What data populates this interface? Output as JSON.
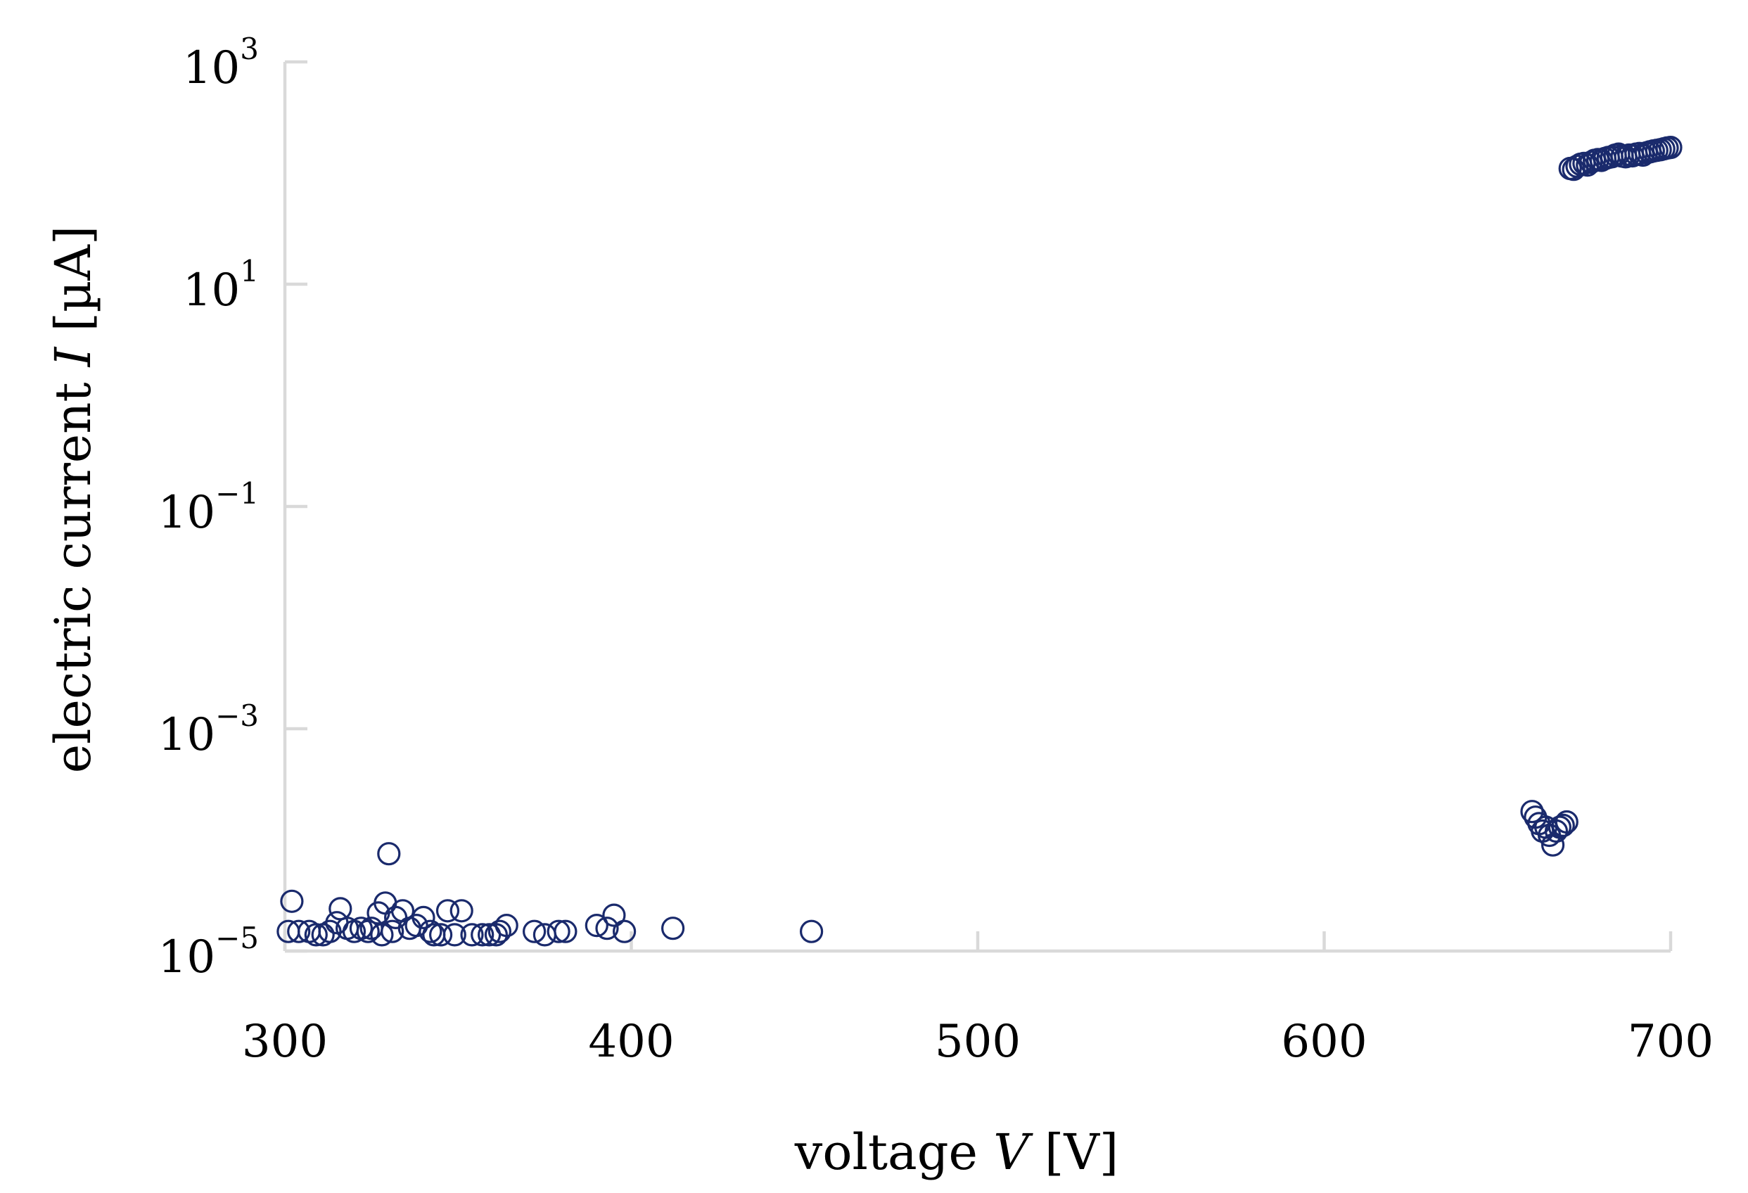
{
  "chart_data": {
    "type": "scatter",
    "xlabel": {
      "prefix": "voltage ",
      "var": "V",
      "suffix": " [V]"
    },
    "ylabel": {
      "prefix": "electric current ",
      "var": "I",
      "suffix": " [µA]"
    },
    "xlim": [
      300,
      700
    ],
    "ylim_log10": [
      -5,
      3
    ],
    "y_scale": "log",
    "x_ticks": [
      {
        "value": 300,
        "label": "300"
      },
      {
        "value": 400,
        "label": "400"
      },
      {
        "value": 500,
        "label": "500"
      },
      {
        "value": 600,
        "label": "600"
      },
      {
        "value": 700,
        "label": "700"
      }
    ],
    "y_ticks": [
      {
        "exp": -5,
        "base": "10",
        "power": "−5"
      },
      {
        "exp": -3,
        "base": "10",
        "power": "−3"
      },
      {
        "exp": -1,
        "base": "10",
        "power": "−1"
      },
      {
        "exp": 1,
        "base": "10",
        "power": "1"
      },
      {
        "exp": 3,
        "base": "10",
        "power": "3"
      }
    ],
    "grid": false,
    "marker": "open-circle",
    "color": "#1a2a6c",
    "points": [
      [
        302,
        2.8e-05
      ],
      [
        301,
        1.5e-05
      ],
      [
        304,
        1.5e-05
      ],
      [
        307,
        1.5e-05
      ],
      [
        309,
        1.4e-05
      ],
      [
        311,
        1.4e-05
      ],
      [
        313,
        1.5e-05
      ],
      [
        315,
        1.8e-05
      ],
      [
        316,
        2.4e-05
      ],
      [
        318,
        1.6e-05
      ],
      [
        320,
        1.5e-05
      ],
      [
        322,
        1.6e-05
      ],
      [
        324,
        1.5e-05
      ],
      [
        325,
        1.6e-05
      ],
      [
        327,
        2.2e-05
      ],
      [
        328,
        1.4e-05
      ],
      [
        329,
        2.7e-05
      ],
      [
        330,
        7.5e-05
      ],
      [
        331,
        1.5e-05
      ],
      [
        332,
        2e-05
      ],
      [
        334,
        2.3e-05
      ],
      [
        336,
        1.6e-05
      ],
      [
        338,
        1.7e-05
      ],
      [
        340,
        2e-05
      ],
      [
        342,
        1.5e-05
      ],
      [
        343,
        1.4e-05
      ],
      [
        345,
        1.4e-05
      ],
      [
        347,
        2.3e-05
      ],
      [
        349,
        1.4e-05
      ],
      [
        351,
        2.3e-05
      ],
      [
        354,
        1.4e-05
      ],
      [
        357,
        1.4e-05
      ],
      [
        359,
        1.4e-05
      ],
      [
        361,
        1.4e-05
      ],
      [
        362,
        1.5e-05
      ],
      [
        364,
        1.7e-05
      ],
      [
        372,
        1.5e-05
      ],
      [
        375,
        1.4e-05
      ],
      [
        379,
        1.5e-05
      ],
      [
        381,
        1.5e-05
      ],
      [
        390,
        1.7e-05
      ],
      [
        393,
        1.6e-05
      ],
      [
        395,
        2.1e-05
      ],
      [
        398,
        1.5e-05
      ],
      [
        412,
        1.6e-05
      ],
      [
        452,
        1.5e-05
      ],
      [
        660,
        0.00018
      ],
      [
        661,
        0.00016
      ],
      [
        662,
        0.00014
      ],
      [
        663,
        0.00012
      ],
      [
        664,
        0.00013
      ],
      [
        665,
        0.00011
      ],
      [
        666,
        9e-05
      ],
      [
        667,
        0.00012
      ],
      [
        668,
        0.00013
      ],
      [
        669,
        0.000135
      ],
      [
        670,
        0.000145
      ],
      [
        671,
        110
      ],
      [
        672,
        108
      ],
      [
        673,
        115
      ],
      [
        674,
        120
      ],
      [
        675,
        122
      ],
      [
        676,
        118
      ],
      [
        677,
        125
      ],
      [
        678,
        130
      ],
      [
        679,
        132
      ],
      [
        680,
        130
      ],
      [
        681,
        135
      ],
      [
        682,
        138
      ],
      [
        683,
        140
      ],
      [
        684,
        145
      ],
      [
        685,
        148
      ],
      [
        686,
        142
      ],
      [
        687,
        140
      ],
      [
        688,
        145
      ],
      [
        689,
        143
      ],
      [
        690,
        148
      ],
      [
        691,
        150
      ],
      [
        692,
        145
      ],
      [
        693,
        152
      ],
      [
        694,
        155
      ],
      [
        695,
        158
      ],
      [
        696,
        160
      ],
      [
        697,
        162
      ],
      [
        698,
        165
      ],
      [
        699,
        168
      ],
      [
        700,
        170
      ]
    ]
  }
}
